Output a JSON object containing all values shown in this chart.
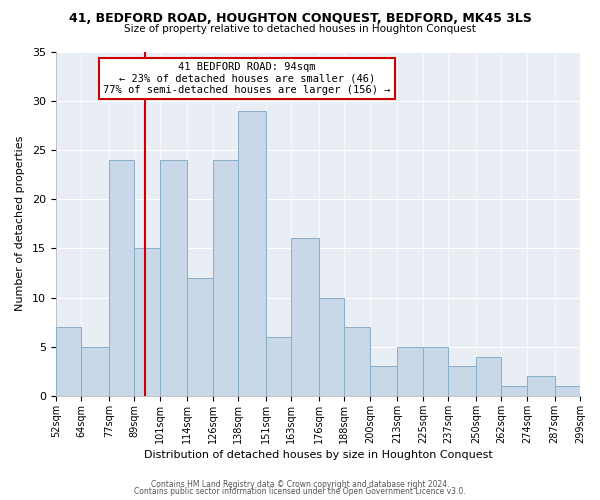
{
  "title1": "41, BEDFORD ROAD, HOUGHTON CONQUEST, BEDFORD, MK45 3LS",
  "title2": "Size of property relative to detached houses in Houghton Conquest",
  "xlabel": "Distribution of detached houses by size in Houghton Conquest",
  "ylabel": "Number of detached properties",
  "bin_labels": [
    "52sqm",
    "64sqm",
    "77sqm",
    "89sqm",
    "101sqm",
    "114sqm",
    "126sqm",
    "138sqm",
    "151sqm",
    "163sqm",
    "176sqm",
    "188sqm",
    "200sqm",
    "213sqm",
    "225sqm",
    "237sqm",
    "250sqm",
    "262sqm",
    "274sqm",
    "287sqm",
    "299sqm"
  ],
  "bar_heights": [
    7,
    5,
    24,
    15,
    24,
    12,
    24,
    29,
    6,
    16,
    10,
    7,
    3,
    5,
    5,
    3,
    4,
    1,
    2,
    1,
    0
  ],
  "bar_color": "#c8d8e8",
  "bar_edge_color": "#8aaec8",
  "vline_x": 94,
  "bin_edges_num": [
    52,
    64,
    77,
    89,
    101,
    114,
    126,
    138,
    151,
    163,
    176,
    188,
    200,
    213,
    225,
    237,
    250,
    262,
    274,
    287,
    299
  ],
  "annotation_title": "41 BEDFORD ROAD: 94sqm",
  "annotation_line1": "← 23% of detached houses are smaller (46)",
  "annotation_line2": "77% of semi-detached houses are larger (156) →",
  "annotation_box_color": "#ffffff",
  "annotation_box_edge": "#cc0000",
  "vline_color": "#cc0000",
  "ylim": [
    0,
    35
  ],
  "yticks": [
    0,
    5,
    10,
    15,
    20,
    25,
    30,
    35
  ],
  "footer1": "Contains HM Land Registry data © Crown copyright and database right 2024.",
  "footer2": "Contains public sector information licensed under the Open Government Licence v3.0.",
  "background_color": "#ffffff",
  "plot_background": "#e8eef4",
  "grid_color": "#ffffff"
}
